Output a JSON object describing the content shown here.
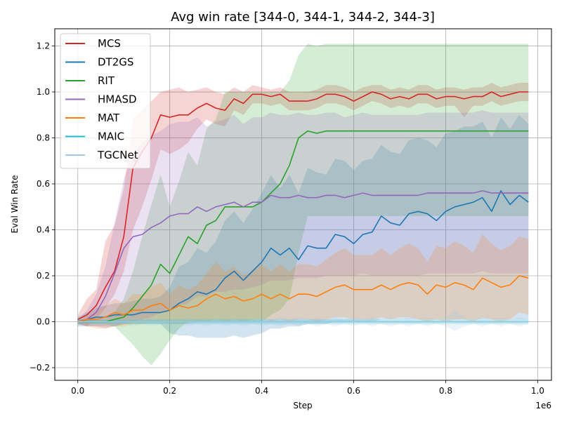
{
  "chart_data": {
    "type": "line",
    "title": "Avg win rate [344-0, 344-1, 344-2, 344-3]",
    "xlabel": "Step",
    "ylabel": "Eval Win Rate",
    "x_offset_label": "1e6",
    "xlim": [
      -0.05,
      1.03
    ],
    "ylim": [
      -0.255,
      1.275
    ],
    "x_ticks": [
      0.0,
      0.2,
      0.4,
      0.6,
      0.8,
      1.0
    ],
    "x_tick_labels": [
      "0.0",
      "0.2",
      "0.4",
      "0.6",
      "0.8",
      "1.0"
    ],
    "y_ticks": [
      -0.2,
      0.0,
      0.2,
      0.4,
      0.6,
      0.8,
      1.0,
      1.2
    ],
    "y_tick_labels": [
      "−0.2",
      "0.0",
      "0.2",
      "0.4",
      "0.6",
      "0.8",
      "1.0",
      "1.2"
    ],
    "grid": true,
    "legend_position": "upper-left",
    "x": [
      0.0,
      0.02,
      0.04,
      0.06,
      0.08,
      0.1,
      0.12,
      0.14,
      0.16,
      0.18,
      0.2,
      0.22,
      0.24,
      0.26,
      0.28,
      0.3,
      0.32,
      0.34,
      0.36,
      0.38,
      0.4,
      0.42,
      0.44,
      0.46,
      0.48,
      0.5,
      0.52,
      0.54,
      0.56,
      0.58,
      0.6,
      0.62,
      0.64,
      0.66,
      0.68,
      0.7,
      0.72,
      0.74,
      0.76,
      0.78,
      0.8,
      0.82,
      0.84,
      0.86,
      0.88,
      0.9,
      0.92,
      0.94,
      0.96,
      0.98
    ],
    "series": [
      {
        "name": "MCS",
        "color": "#d62728",
        "values": [
          0.01,
          0.03,
          0.07,
          0.15,
          0.22,
          0.37,
          0.67,
          0.74,
          0.8,
          0.9,
          0.89,
          0.9,
          0.9,
          0.93,
          0.95,
          0.93,
          0.92,
          0.97,
          0.95,
          0.99,
          0.99,
          0.98,
          0.99,
          0.96,
          0.96,
          0.96,
          0.97,
          0.99,
          0.99,
          0.98,
          0.96,
          0.98,
          1.0,
          0.99,
          0.97,
          0.98,
          0.97,
          0.99,
          0.99,
          0.97,
          0.98,
          0.98,
          0.97,
          0.98,
          0.98,
          1.0,
          0.98,
          0.99,
          1.0,
          1.0
        ],
        "lower": [
          -0.01,
          -0.02,
          0.01,
          0.06,
          0.12,
          0.22,
          0.4,
          0.5,
          0.62,
          0.75,
          0.73,
          0.75,
          0.78,
          0.84,
          0.88,
          0.86,
          0.85,
          0.92,
          0.9,
          0.95,
          0.95,
          0.94,
          0.95,
          0.92,
          0.92,
          0.92,
          0.93,
          0.95,
          0.95,
          0.94,
          0.92,
          0.94,
          0.96,
          0.95,
          0.93,
          0.94,
          0.93,
          0.95,
          0.95,
          0.93,
          0.94,
          0.94,
          0.89,
          0.94,
          0.94,
          0.96,
          0.94,
          0.95,
          0.96,
          0.96
        ],
        "upper": [
          0.03,
          0.1,
          0.14,
          0.35,
          0.42,
          0.58,
          0.88,
          0.92,
          0.96,
          1.0,
          1.01,
          1.02,
          1.0,
          1.01,
          1.02,
          1.0,
          0.99,
          1.02,
          1.0,
          1.03,
          1.02,
          1.01,
          1.02,
          1.0,
          1.0,
          1.0,
          1.01,
          1.03,
          1.03,
          1.02,
          1.0,
          1.02,
          1.03,
          1.03,
          1.01,
          1.02,
          1.01,
          1.03,
          1.03,
          1.01,
          1.02,
          1.02,
          1.01,
          1.02,
          1.02,
          1.04,
          1.02,
          1.03,
          1.04,
          1.04
        ]
      },
      {
        "name": "DT2GS",
        "color": "#1f77b4",
        "values": [
          0.0,
          0.01,
          0.02,
          0.02,
          0.03,
          0.03,
          0.03,
          0.04,
          0.04,
          0.04,
          0.05,
          0.08,
          0.1,
          0.13,
          0.12,
          0.14,
          0.19,
          0.22,
          0.18,
          0.22,
          0.26,
          0.32,
          0.29,
          0.32,
          0.27,
          0.33,
          0.32,
          0.32,
          0.38,
          0.37,
          0.34,
          0.38,
          0.39,
          0.46,
          0.43,
          0.42,
          0.47,
          0.48,
          0.47,
          0.44,
          0.48,
          0.5,
          0.51,
          0.52,
          0.54,
          0.48,
          0.57,
          0.51,
          0.55,
          0.52
        ],
        "lower": [
          -0.02,
          -0.02,
          -0.02,
          -0.02,
          -0.02,
          -0.01,
          -0.01,
          -0.01,
          -0.01,
          -0.01,
          -0.05,
          -0.06,
          -0.06,
          -0.07,
          -0.07,
          -0.07,
          -0.07,
          -0.06,
          -0.07,
          -0.06,
          -0.05,
          -0.03,
          -0.03,
          -0.02,
          -0.02,
          -0.01,
          -0.01,
          -0.01,
          0.0,
          0.0,
          0.0,
          0.0,
          0.0,
          0.01,
          0.01,
          0.01,
          0.01,
          0.01,
          0.01,
          0.01,
          0.01,
          0.01,
          0.01,
          0.01,
          0.01,
          0.01,
          0.01,
          0.01,
          0.01,
          0.01
        ],
        "upper": [
          0.02,
          0.04,
          0.06,
          0.07,
          0.08,
          0.08,
          0.09,
          0.1,
          0.1,
          0.11,
          0.15,
          0.24,
          0.26,
          0.32,
          0.3,
          0.35,
          0.44,
          0.48,
          0.43,
          0.49,
          0.56,
          0.64,
          0.58,
          0.64,
          0.56,
          0.67,
          0.65,
          0.64,
          0.71,
          0.7,
          0.66,
          0.7,
          0.71,
          0.77,
          0.74,
          0.73,
          0.79,
          0.8,
          0.79,
          0.76,
          0.82,
          0.83,
          0.85,
          0.85,
          0.87,
          0.8,
          0.89,
          0.84,
          0.9,
          0.86
        ]
      },
      {
        "name": "RIT",
        "color": "#2ca02c",
        "values": [
          0.0,
          0.0,
          0.0,
          0.0,
          0.01,
          0.02,
          0.06,
          0.11,
          0.16,
          0.25,
          0.21,
          0.29,
          0.37,
          0.34,
          0.42,
          0.44,
          0.5,
          0.5,
          0.5,
          0.5,
          0.52,
          0.56,
          0.6,
          0.68,
          0.8,
          0.83,
          0.82,
          0.83,
          0.83,
          0.83,
          0.83,
          0.83,
          0.83,
          0.83,
          0.83,
          0.83,
          0.83,
          0.83,
          0.83,
          0.83,
          0.83,
          0.83,
          0.83,
          0.83,
          0.83,
          0.83,
          0.83,
          0.83,
          0.83,
          0.83
        ],
        "lower": [
          -0.01,
          -0.01,
          -0.01,
          -0.01,
          -0.02,
          -0.06,
          -0.1,
          -0.15,
          -0.19,
          -0.14,
          -0.08,
          -0.03,
          0.0,
          0.0,
          0.0,
          0.0,
          0.0,
          0.0,
          0.0,
          0.0,
          0.0,
          0.03,
          0.05,
          0.1,
          0.3,
          0.46,
          0.46,
          0.46,
          0.46,
          0.46,
          0.46,
          0.46,
          0.46,
          0.46,
          0.46,
          0.46,
          0.46,
          0.46,
          0.46,
          0.46,
          0.46,
          0.46,
          0.46,
          0.46,
          0.46,
          0.46,
          0.46,
          0.46,
          0.46,
          0.46
        ],
        "upper": [
          0.01,
          0.01,
          0.01,
          0.01,
          0.04,
          0.1,
          0.22,
          0.37,
          0.51,
          0.64,
          0.5,
          0.61,
          0.74,
          0.68,
          0.84,
          0.88,
          1.0,
          1.0,
          1.0,
          1.0,
          1.0,
          1.0,
          1.0,
          1.05,
          1.16,
          1.21,
          1.2,
          1.21,
          1.21,
          1.21,
          1.21,
          1.21,
          1.21,
          1.21,
          1.21,
          1.21,
          1.21,
          1.21,
          1.21,
          1.21,
          1.21,
          1.21,
          1.21,
          1.21,
          1.21,
          1.21,
          1.21,
          1.21,
          1.21,
          1.21
        ]
      },
      {
        "name": "HMASD",
        "color": "#9467bd",
        "values": [
          0.0,
          0.01,
          0.04,
          0.11,
          0.21,
          0.32,
          0.37,
          0.38,
          0.41,
          0.43,
          0.46,
          0.47,
          0.47,
          0.5,
          0.48,
          0.5,
          0.51,
          0.52,
          0.5,
          0.52,
          0.52,
          0.55,
          0.54,
          0.54,
          0.55,
          0.54,
          0.54,
          0.55,
          0.55,
          0.54,
          0.55,
          0.56,
          0.55,
          0.55,
          0.55,
          0.55,
          0.55,
          0.55,
          0.56,
          0.56,
          0.56,
          0.56,
          0.56,
          0.56,
          0.57,
          0.56,
          0.56,
          0.56,
          0.56,
          0.56
        ],
        "lower": [
          -0.01,
          -0.02,
          -0.02,
          -0.03,
          -0.02,
          -0.01,
          0.0,
          0.01,
          0.02,
          0.04,
          0.06,
          0.07,
          0.08,
          0.11,
          0.11,
          0.13,
          0.13,
          0.14,
          0.14,
          0.15,
          0.16,
          0.18,
          0.18,
          0.18,
          0.19,
          0.19,
          0.19,
          0.2,
          0.2,
          0.2,
          0.2,
          0.21,
          0.2,
          0.2,
          0.2,
          0.2,
          0.2,
          0.2,
          0.21,
          0.21,
          0.21,
          0.21,
          0.21,
          0.21,
          0.22,
          0.21,
          0.21,
          0.21,
          0.21,
          0.21
        ],
        "upper": [
          0.01,
          0.05,
          0.12,
          0.24,
          0.43,
          0.62,
          0.73,
          0.78,
          0.81,
          0.83,
          0.86,
          0.87,
          0.87,
          0.89,
          0.85,
          0.87,
          0.88,
          0.9,
          0.86,
          0.89,
          0.89,
          0.91,
          0.9,
          0.9,
          0.91,
          0.9,
          0.9,
          0.91,
          0.91,
          0.89,
          0.9,
          0.91,
          0.9,
          0.9,
          0.9,
          0.9,
          0.9,
          0.9,
          0.91,
          0.91,
          0.91,
          0.91,
          0.91,
          0.91,
          0.92,
          0.91,
          0.91,
          0.91,
          0.91,
          0.91
        ]
      },
      {
        "name": "MAT",
        "color": "#ff7f0e",
        "values": [
          0.0,
          0.01,
          0.01,
          0.02,
          0.04,
          0.03,
          0.05,
          0.05,
          0.07,
          0.08,
          0.05,
          0.07,
          0.06,
          0.07,
          0.1,
          0.12,
          0.1,
          0.11,
          0.09,
          0.1,
          0.12,
          0.1,
          0.12,
          0.1,
          0.12,
          0.12,
          0.11,
          0.13,
          0.15,
          0.16,
          0.14,
          0.14,
          0.14,
          0.16,
          0.14,
          0.16,
          0.17,
          0.16,
          0.12,
          0.16,
          0.15,
          0.17,
          0.16,
          0.14,
          0.19,
          0.17,
          0.15,
          0.16,
          0.2,
          0.19
        ],
        "lower": [
          -0.01,
          -0.02,
          -0.03,
          -0.03,
          -0.02,
          -0.02,
          -0.01,
          -0.01,
          0.0,
          0.0,
          -0.01,
          -0.01,
          -0.01,
          0.0,
          0.0,
          0.01,
          0.0,
          0.01,
          0.0,
          0.01,
          0.01,
          0.0,
          0.01,
          0.0,
          0.01,
          0.01,
          0.0,
          0.01,
          0.02,
          0.02,
          0.01,
          0.01,
          0.01,
          0.02,
          0.01,
          0.02,
          0.02,
          0.01,
          0.0,
          0.01,
          0.0,
          0.01,
          0.01,
          0.0,
          0.02,
          0.01,
          0.0,
          0.01,
          0.04,
          0.03
        ],
        "upper": [
          0.01,
          0.03,
          0.05,
          0.07,
          0.1,
          0.08,
          0.12,
          0.12,
          0.15,
          0.17,
          0.12,
          0.16,
          0.14,
          0.16,
          0.21,
          0.26,
          0.22,
          0.24,
          0.2,
          0.22,
          0.25,
          0.22,
          0.25,
          0.22,
          0.25,
          0.25,
          0.24,
          0.27,
          0.3,
          0.32,
          0.29,
          0.29,
          0.29,
          0.32,
          0.29,
          0.32,
          0.34,
          0.32,
          0.26,
          0.33,
          0.32,
          0.35,
          0.33,
          0.3,
          0.38,
          0.34,
          0.31,
          0.33,
          0.37,
          0.36
        ]
      },
      {
        "name": "MAIC",
        "color": "#17becf",
        "values": [
          0.0,
          0.0,
          0.0,
          0.0,
          0.0,
          0.0,
          0.0,
          0.0,
          0.0,
          0.0,
          0.0,
          0.0,
          0.0,
          0.0,
          0.0,
          0.0,
          0.0,
          0.0,
          0.0,
          0.0,
          0.0,
          0.0,
          0.0,
          0.0,
          0.0,
          0.0,
          0.0,
          0.0,
          0.0,
          0.0,
          0.0,
          0.0,
          0.0,
          0.0,
          0.0,
          0.0,
          0.0,
          0.0,
          0.0,
          0.0,
          0.0,
          0.0,
          0.0,
          0.0,
          0.0,
          0.0,
          0.0,
          0.0,
          0.0,
          0.0
        ],
        "lower": [
          -0.01,
          -0.01,
          -0.01,
          -0.01,
          -0.01,
          -0.01,
          -0.01,
          -0.01,
          -0.01,
          -0.01,
          -0.01,
          -0.01,
          -0.01,
          -0.01,
          -0.01,
          -0.01,
          -0.01,
          -0.01,
          -0.01,
          -0.01,
          -0.01,
          -0.01,
          -0.01,
          -0.01,
          -0.01,
          -0.01,
          -0.01,
          -0.01,
          -0.01,
          -0.01,
          -0.01,
          -0.01,
          -0.01,
          -0.01,
          -0.01,
          -0.01,
          -0.01,
          -0.01,
          -0.01,
          -0.01,
          -0.01,
          -0.01,
          -0.01,
          -0.01,
          -0.01,
          -0.01,
          -0.01,
          -0.01,
          -0.01,
          -0.01
        ],
        "upper": [
          0.01,
          0.01,
          0.01,
          0.01,
          0.01,
          0.01,
          0.01,
          0.01,
          0.01,
          0.01,
          0.01,
          0.01,
          0.01,
          0.01,
          0.01,
          0.01,
          0.01,
          0.01,
          0.01,
          0.01,
          0.01,
          0.01,
          0.01,
          0.01,
          0.01,
          0.01,
          0.01,
          0.01,
          0.01,
          0.01,
          0.01,
          0.01,
          0.01,
          0.01,
          0.01,
          0.01,
          0.01,
          0.01,
          0.01,
          0.01,
          0.01,
          0.01,
          0.01,
          0.01,
          0.01,
          0.01,
          0.01,
          0.01,
          0.01,
          0.01
        ]
      },
      {
        "name": "TGCNet",
        "color": "#9ecae1",
        "values": [
          0.0,
          0.0,
          0.0,
          0.0,
          0.0,
          0.0,
          0.0,
          0.0,
          0.0,
          0.0,
          0.0,
          0.0,
          0.0,
          0.0,
          0.0,
          0.0,
          0.0,
          0.0,
          0.0,
          0.0,
          0.0,
          0.0,
          0.0,
          0.0,
          0.0,
          0.0,
          0.0,
          0.0,
          0.0,
          0.0,
          0.0,
          0.0,
          0.0,
          0.0,
          0.0,
          0.0,
          0.0,
          0.0,
          0.0,
          0.0,
          0.0,
          0.0,
          0.0,
          0.0,
          0.0,
          0.0,
          0.0,
          0.0,
          0.0,
          0.0
        ],
        "lower": [
          -0.02,
          -0.01,
          -0.02,
          -0.01,
          -0.02,
          -0.01,
          -0.02,
          -0.01,
          -0.02,
          -0.01,
          -0.02,
          -0.01,
          -0.02,
          -0.01,
          -0.02,
          -0.01,
          -0.02,
          -0.01,
          -0.02,
          -0.01,
          -0.02,
          -0.01,
          -0.02,
          -0.01,
          -0.02,
          -0.01,
          -0.02,
          -0.01,
          -0.02,
          -0.01,
          -0.02,
          -0.01,
          -0.02,
          -0.01,
          -0.02,
          -0.01,
          -0.02,
          -0.01,
          -0.02,
          -0.01,
          -0.02,
          -0.04,
          -0.02,
          -0.01,
          -0.02,
          -0.01,
          -0.02,
          -0.01,
          -0.02,
          -0.01
        ],
        "upper": [
          0.03,
          0.01,
          0.02,
          0.01,
          0.02,
          0.01,
          0.02,
          0.01,
          0.02,
          0.01,
          0.02,
          0.01,
          0.02,
          0.01,
          0.02,
          0.01,
          0.02,
          0.01,
          0.02,
          0.01,
          0.02,
          0.01,
          0.02,
          0.01,
          0.02,
          0.01,
          0.02,
          0.01,
          0.02,
          0.01,
          0.02,
          0.01,
          0.02,
          0.01,
          0.02,
          0.01,
          0.02,
          0.01,
          0.02,
          0.01,
          0.02,
          0.05,
          0.02,
          0.01,
          0.02,
          0.01,
          0.02,
          0.01,
          0.02,
          0.01
        ]
      }
    ]
  }
}
